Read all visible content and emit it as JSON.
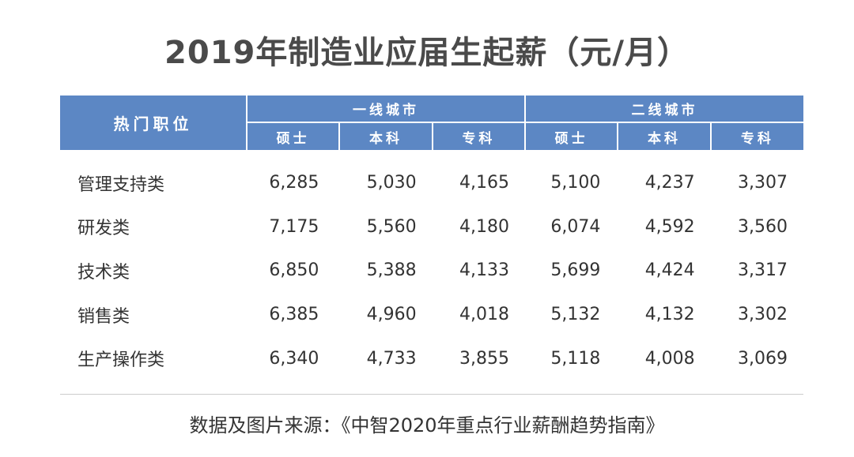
{
  "chart_data": {
    "type": "table",
    "title": "2019年制造业应届生起薪（元/月）",
    "row_header": "热门职位",
    "groups": [
      {
        "name": "一线城市",
        "columns": [
          "硕士",
          "本科",
          "专科"
        ]
      },
      {
        "name": "二线城市",
        "columns": [
          "硕士",
          "本科",
          "专科"
        ]
      }
    ],
    "rows": [
      {
        "label": "管理支持类",
        "values": [
          "6,285",
          "5,030",
          "4,165",
          "5,100",
          "4,237",
          "3,307"
        ]
      },
      {
        "label": "研发类",
        "values": [
          "7,175",
          "5,560",
          "4,180",
          "6,074",
          "4,592",
          "3,560"
        ]
      },
      {
        "label": "技术类",
        "values": [
          "6,850",
          "5,388",
          "4,133",
          "5,699",
          "4,424",
          "3,317"
        ]
      },
      {
        "label": "销售类",
        "values": [
          "6,385",
          "4,960",
          "4,018",
          "5,132",
          "4,132",
          "3,302"
        ]
      },
      {
        "label": "生产操作类",
        "values": [
          "6,340",
          "4,733",
          "3,855",
          "5,118",
          "4,008",
          "3,069"
        ]
      }
    ],
    "source": "数据及图片来源：《中智2020年重点行业薪酬趋势指南》"
  },
  "colors": {
    "header_bg": "#5c87c4",
    "header_text": "#ffffff",
    "title_text": "#4a4a4a",
    "body_text": "#333333",
    "rule": "#cccccc"
  }
}
